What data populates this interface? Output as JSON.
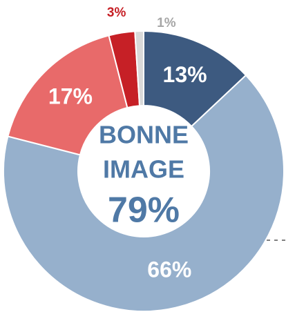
{
  "chart_data": {
    "type": "donut",
    "values": [
      13,
      66,
      17,
      3,
      1
    ],
    "value_labels": [
      "13%",
      "66%",
      "17%",
      "3%",
      "1%"
    ],
    "colors": [
      "#3d5a80",
      "#96b0cc",
      "#e86a6a",
      "#c62026",
      "#d9d9d9"
    ],
    "label_colors": [
      "#ffffff",
      "#ffffff",
      "#ffffff",
      "#c62026",
      "#a6a6a6"
    ],
    "center_text": [
      "BONNE",
      "IMAGE"
    ],
    "center_value_label": "79%"
  }
}
